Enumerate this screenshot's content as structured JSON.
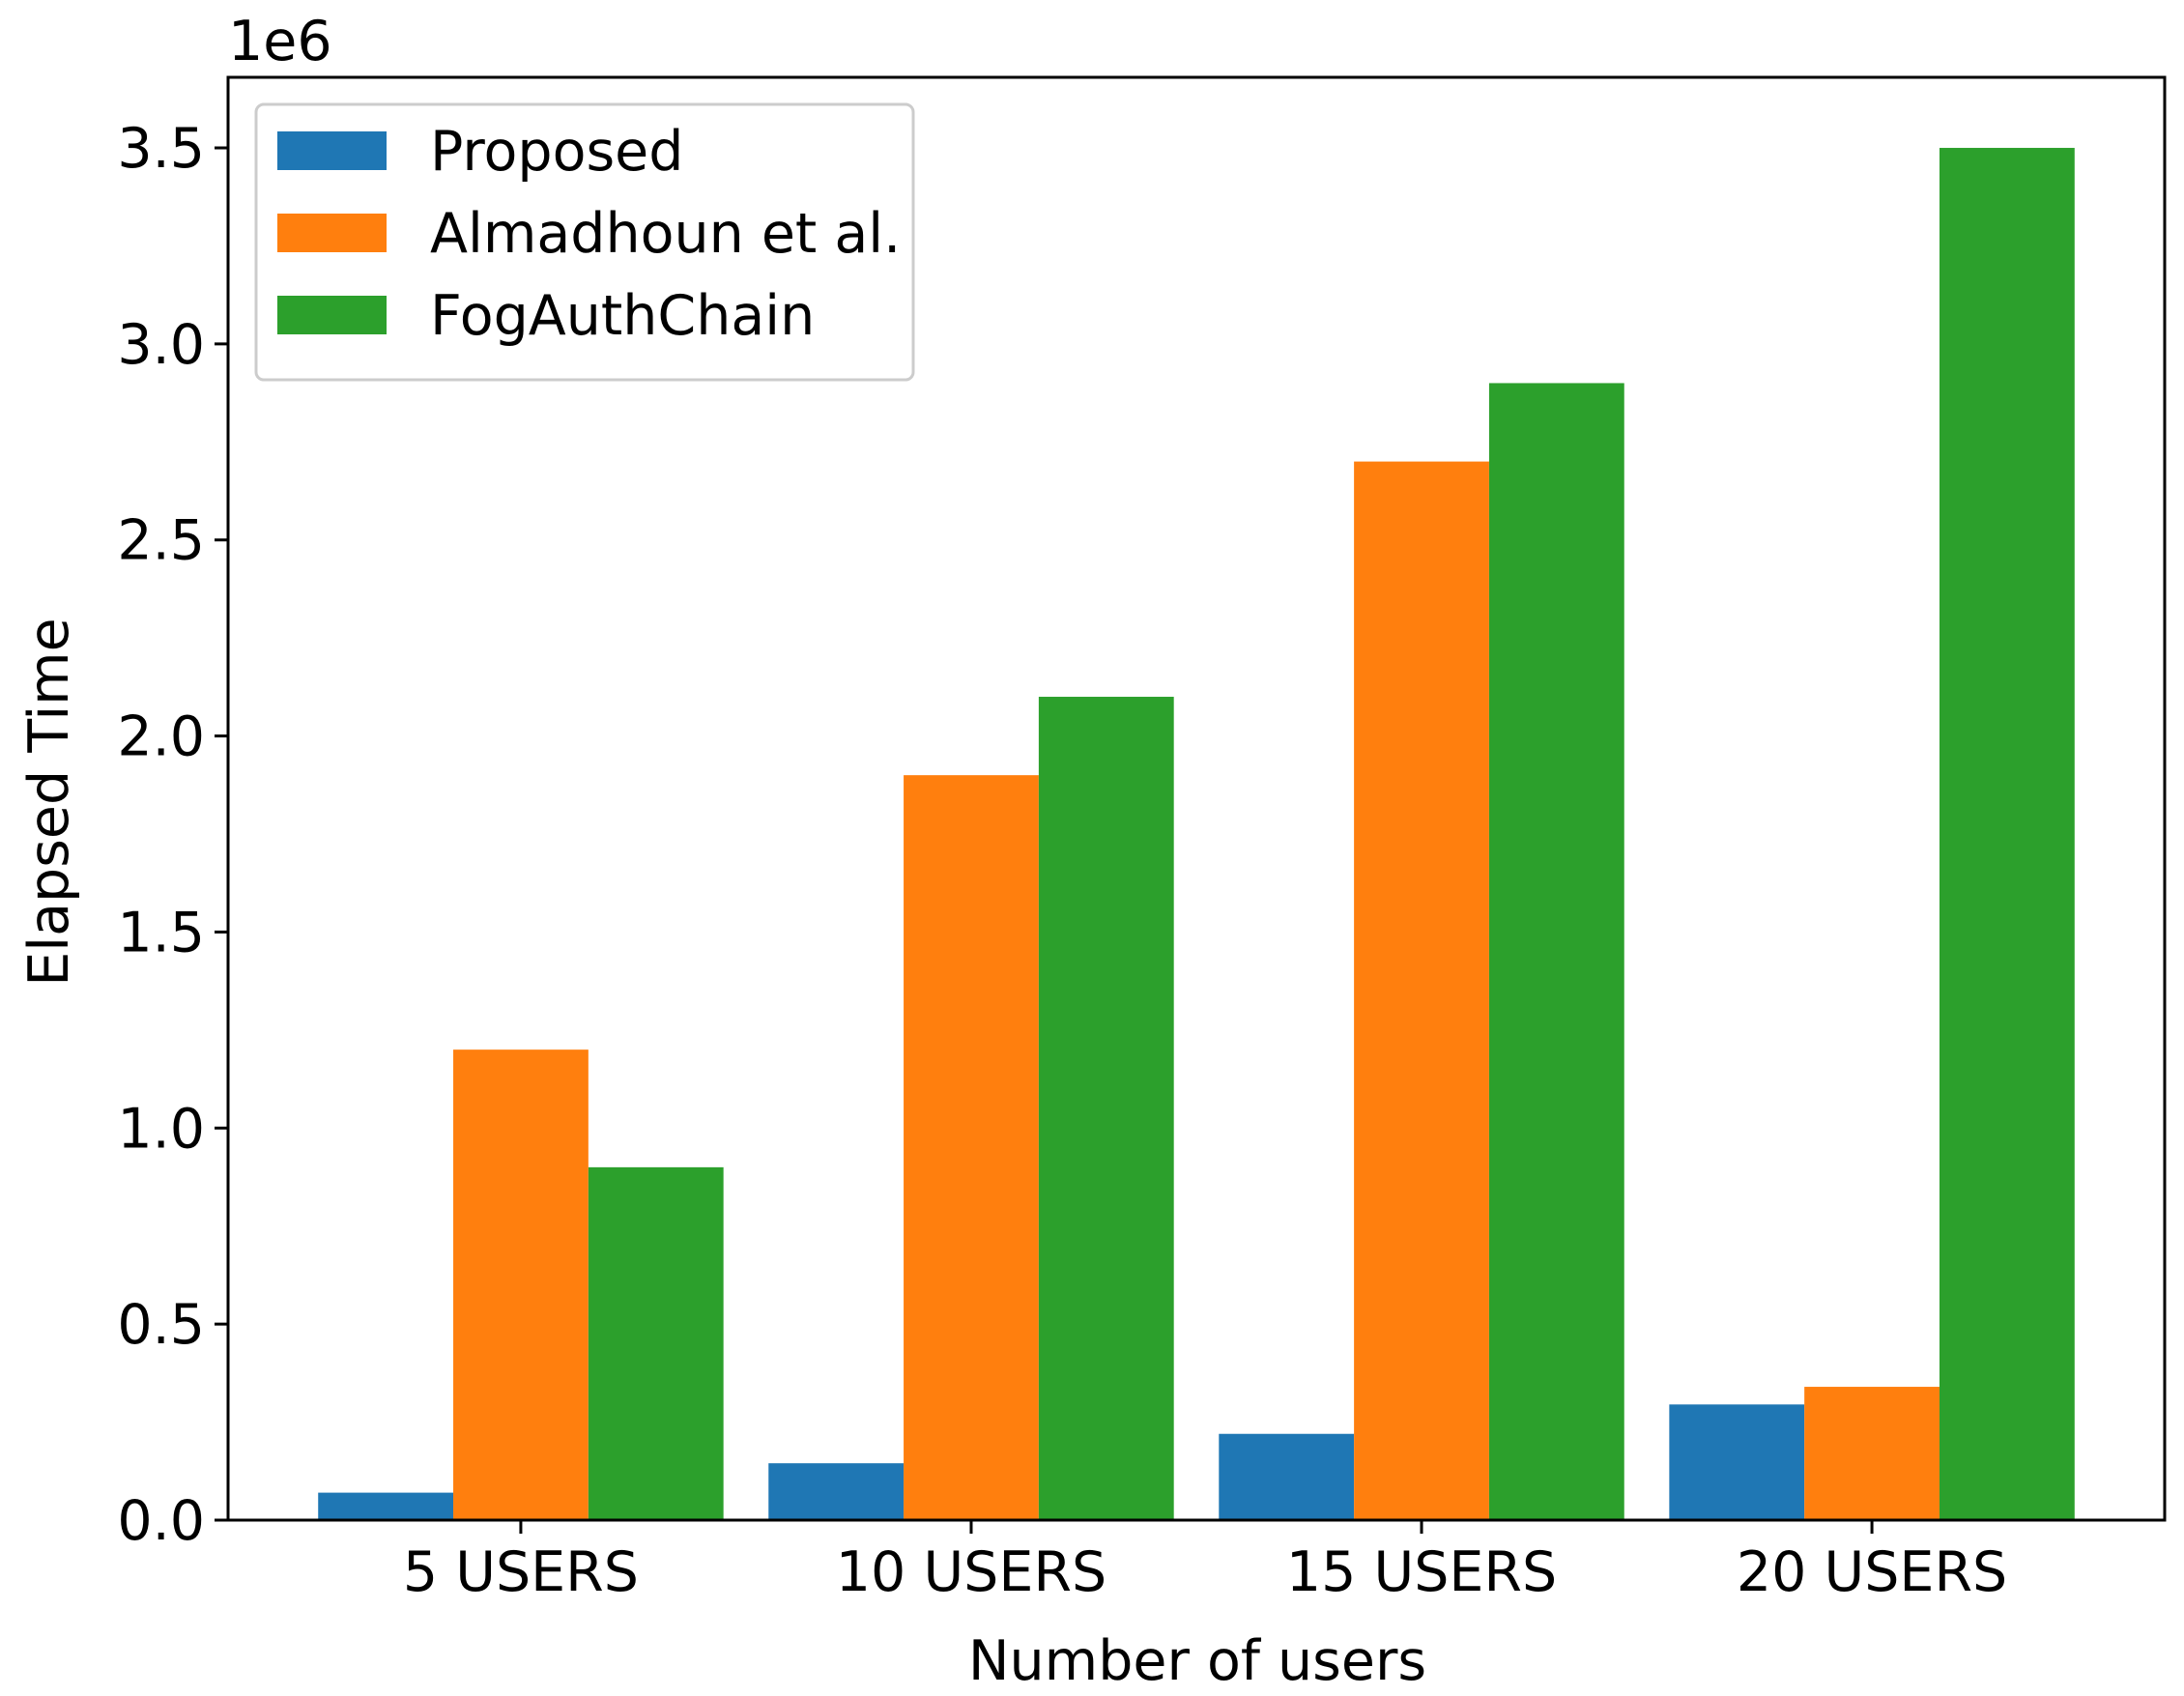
{
  "chart_data": {
    "type": "bar",
    "title": "",
    "xlabel": "Number of users",
    "ylabel": "Elapsed Time",
    "y_offset_label": "1e6",
    "y_scale_factor": 1000000,
    "ylim": [
      0,
      3.68
    ],
    "yticks": [
      0.0,
      0.5,
      1.0,
      1.5,
      2.0,
      2.5,
      3.0,
      3.5
    ],
    "ytick_labels": [
      "0.0",
      "0.5",
      "1.0",
      "1.5",
      "2.0",
      "2.5",
      "3.0",
      "3.5"
    ],
    "categories": [
      "5 USERS",
      "10 USERS",
      "15 USERS",
      "20 USERS"
    ],
    "series": [
      {
        "name": "Proposed",
        "color": "#1f77b4",
        "values": [
          0.07,
          0.145,
          0.22,
          0.295
        ]
      },
      {
        "name": "Almadhoun et al.",
        "color": "#ff7f0e",
        "values": [
          1.2,
          1.9,
          2.7,
          0.34
        ]
      },
      {
        "name": "FogAuthChain",
        "color": "#2ca02c",
        "values": [
          0.9,
          2.1,
          2.9,
          3.5
        ]
      }
    ],
    "grid": false,
    "legend_position": "top-left"
  }
}
